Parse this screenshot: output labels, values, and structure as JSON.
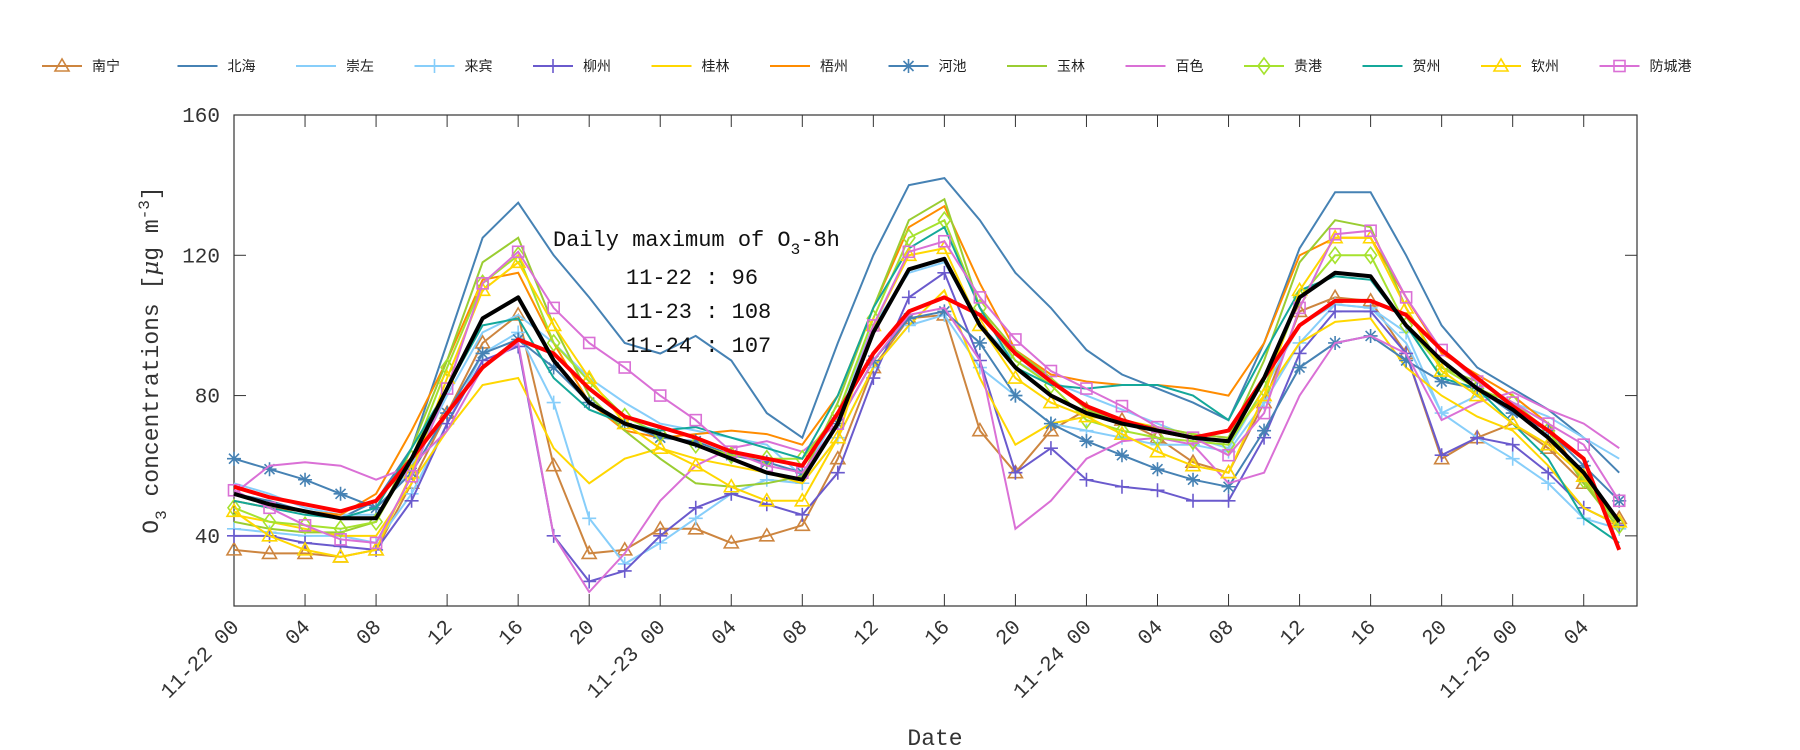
{
  "chart_data": {
    "type": "line",
    "title": "",
    "xlabel": "Date",
    "ylabel": "O3 concentrations [μg m-3]",
    "ylabel_parts": {
      "o": "O",
      "sub": "3",
      "mid": " concentrations [",
      "mu": "μ",
      "g": "g m",
      "sup": "-3",
      "end": "]"
    },
    "ylim": [
      20,
      160
    ],
    "xlim_hours": [
      0,
      79
    ],
    "yticks": [
      "40",
      "80",
      "120",
      "160"
    ],
    "ytick_values": [
      40,
      80,
      120,
      160
    ],
    "xticks": [
      "11-22 00",
      "04",
      "08",
      "12",
      "16",
      "20",
      "11-23 00",
      "04",
      "08",
      "12",
      "16",
      "20",
      "11-24 00",
      "04",
      "08",
      "12",
      "16",
      "20",
      "11-25 00",
      "04"
    ],
    "xtick_hours": [
      0,
      4,
      8,
      12,
      16,
      20,
      24,
      28,
      32,
      36,
      40,
      44,
      48,
      52,
      56,
      60,
      64,
      68,
      72,
      76
    ],
    "legend_position": "top",
    "annotation": {
      "title_main": "Daily maximum of O",
      "title_sub": "3",
      "title_end": "-8h",
      "lines": [
        "11-22 : 96",
        "11-23 : 108",
        "11-24 : 107"
      ]
    },
    "x_hours": [
      0,
      2,
      4,
      6,
      8,
      10,
      12,
      14,
      16,
      18,
      20,
      22,
      24,
      26,
      28,
      30,
      32,
      34,
      36,
      38,
      40,
      42,
      44,
      46,
      48,
      50,
      52,
      54,
      56,
      58,
      60,
      62,
      64,
      66,
      68,
      70,
      72,
      74,
      76,
      78
    ],
    "series": [
      {
        "name": "南宁",
        "color": "#cd853f",
        "marker": "triangle",
        "values": [
          36,
          35,
          35,
          34,
          36,
          55,
          75,
          95,
          103,
          60,
          35,
          36,
          42,
          42,
          38,
          40,
          43,
          62,
          88,
          102,
          103,
          70,
          58,
          70,
          76,
          73,
          68,
          61,
          58,
          78,
          104,
          108,
          107,
          92,
          62,
          68,
          72,
          65,
          55,
          45
        ]
      },
      {
        "name": "北海",
        "color": "#4682b4",
        "marker": "none",
        "values": [
          52,
          50,
          47,
          45,
          50,
          65,
          95,
          125,
          135,
          120,
          108,
          95,
          92,
          97,
          90,
          75,
          68,
          95,
          120,
          140,
          142,
          130,
          115,
          105,
          93,
          86,
          82,
          78,
          73,
          95,
          122,
          138,
          138,
          120,
          100,
          88,
          82,
          76,
          68,
          58
        ]
      },
      {
        "name": "崇左",
        "color": "#87cefa",
        "marker": "none",
        "values": [
          55,
          52,
          48,
          46,
          46,
          60,
          80,
          98,
          103,
          95,
          85,
          78,
          72,
          70,
          68,
          66,
          57,
          75,
          100,
          115,
          118,
          100,
          90,
          84,
          80,
          76,
          72,
          68,
          65,
          82,
          100,
          106,
          105,
          95,
          75,
          80,
          78,
          74,
          68,
          62
        ]
      },
      {
        "name": "来宾",
        "color": "#87cefa",
        "marker": "plus",
        "values": [
          42,
          41,
          40,
          40,
          38,
          52,
          72,
          92,
          98,
          78,
          45,
          32,
          38,
          45,
          52,
          56,
          55,
          68,
          88,
          100,
          103,
          88,
          80,
          72,
          70,
          68,
          66,
          66,
          64,
          78,
          95,
          106,
          105,
          98,
          75,
          68,
          62,
          55,
          45,
          42
        ]
      },
      {
        "name": "柳州",
        "color": "#6a5acd",
        "marker": "plus",
        "values": [
          40,
          40,
          38,
          37,
          36,
          50,
          72,
          90,
          94,
          40,
          27,
          30,
          40,
          48,
          52,
          49,
          46,
          58,
          85,
          108,
          115,
          90,
          58,
          65,
          56,
          54,
          53,
          50,
          50,
          68,
          92,
          104,
          104,
          92,
          63,
          68,
          66,
          58,
          48,
          43
        ]
      },
      {
        "name": "桂林",
        "color": "#ffd700",
        "marker": "none",
        "values": [
          46,
          44,
          42,
          40,
          40,
          55,
          70,
          83,
          85,
          65,
          55,
          62,
          65,
          62,
          60,
          58,
          55,
          68,
          88,
          100,
          110,
          85,
          66,
          72,
          74,
          73,
          71,
          69,
          68,
          80,
          95,
          101,
          102,
          88,
          80,
          74,
          70,
          60,
          48,
          43
        ]
      },
      {
        "name": "梧州",
        "color": "#ff8c00",
        "marker": "none",
        "values": [
          50,
          48,
          47,
          46,
          52,
          70,
          90,
          113,
          115,
          95,
          78,
          70,
          68,
          69,
          70,
          69,
          66,
          80,
          105,
          128,
          134,
          112,
          93,
          86,
          84,
          83,
          83,
          82,
          80,
          95,
          120,
          125,
          125,
          108,
          92,
          86,
          80,
          72,
          55,
          44
        ]
      },
      {
        "name": "河池",
        "color": "#4682b4",
        "marker": "asterisk",
        "values": [
          62,
          59,
          56,
          52,
          48,
          58,
          75,
          92,
          96,
          88,
          78,
          72,
          68,
          67,
          63,
          61,
          58,
          72,
          90,
          102,
          104,
          95,
          80,
          72,
          67,
          63,
          59,
          56,
          54,
          70,
          88,
          95,
          97,
          90,
          84,
          82,
          75,
          70,
          60,
          50
        ]
      },
      {
        "name": "玉林",
        "color": "#9acd32",
        "marker": "none",
        "values": [
          44,
          42,
          41,
          41,
          44,
          65,
          90,
          118,
          125,
          100,
          80,
          70,
          62,
          55,
          54,
          55,
          57,
          78,
          105,
          130,
          136,
          105,
          93,
          85,
          76,
          72,
          71,
          69,
          68,
          90,
          118,
          130,
          128,
          105,
          88,
          84,
          78,
          70,
          55,
          42
        ]
      },
      {
        "name": "百色",
        "color": "#da70d6",
        "marker": "none",
        "values": [
          52,
          60,
          61,
          60,
          56,
          60,
          70,
          88,
          95,
          40,
          24,
          35,
          50,
          60,
          65,
          67,
          64,
          72,
          90,
          103,
          105,
          90,
          42,
          50,
          62,
          67,
          68,
          66,
          55,
          58,
          80,
          95,
          97,
          92,
          73,
          78,
          81,
          76,
          72,
          65
        ]
      },
      {
        "name": "贵港",
        "color": "#a6e22e",
        "marker": "diamond",
        "values": [
          48,
          44,
          43,
          42,
          44,
          62,
          88,
          112,
          120,
          95,
          84,
          74,
          69,
          66,
          63,
          62,
          62,
          75,
          102,
          125,
          130,
          105,
          90,
          83,
          73,
          70,
          68,
          67,
          66,
          82,
          108,
          120,
          120,
          100,
          88,
          82,
          78,
          70,
          56,
          43
        ]
      },
      {
        "name": "贺州",
        "color": "#14a89a",
        "marker": "none",
        "values": [
          50,
          48,
          46,
          45,
          48,
          65,
          82,
          100,
          102,
          85,
          76,
          72,
          70,
          71,
          68,
          65,
          62,
          80,
          105,
          122,
          128,
          105,
          88,
          83,
          82,
          83,
          83,
          80,
          73,
          92,
          110,
          114,
          113,
          100,
          85,
          82,
          72,
          62,
          45,
          38
        ]
      },
      {
        "name": "钦州",
        "color": "#ffd700",
        "marker": "triangle",
        "values": [
          47,
          40,
          36,
          34,
          36,
          58,
          85,
          110,
          118,
          100,
          85,
          72,
          65,
          60,
          54,
          50,
          50,
          68,
          100,
          120,
          122,
          100,
          85,
          78,
          74,
          69,
          64,
          60,
          58,
          80,
          110,
          125,
          125,
          105,
          87,
          80,
          72,
          66,
          57,
          44
        ]
      },
      {
        "name": "防城港",
        "color": "#da70d6",
        "marker": "square",
        "values": [
          53,
          48,
          43,
          39,
          38,
          57,
          82,
          112,
          121,
          105,
          95,
          88,
          80,
          73,
          64,
          60,
          58,
          72,
          100,
          121,
          124,
          108,
          96,
          87,
          82,
          77,
          71,
          68,
          63,
          75,
          105,
          126,
          127,
          108,
          93,
          84,
          78,
          72,
          66,
          50
        ]
      }
    ],
    "extra_series": [
      {
        "color": "#ff0000",
        "values": [
          54,
          51,
          49,
          47,
          50,
          62,
          75,
          88,
          96,
          92,
          82,
          74,
          71,
          68,
          64,
          62,
          60,
          75,
          92,
          104,
          108,
          103,
          92,
          84,
          77,
          73,
          70,
          68,
          70,
          85,
          100,
          107,
          107,
          103,
          93,
          85,
          77,
          70,
          62,
          36
        ]
      },
      {
        "color": "#000000",
        "values": [
          52,
          49,
          47,
          45,
          45,
          62,
          82,
          102,
          108,
          90,
          78,
          72,
          69,
          66,
          62,
          58,
          56,
          72,
          98,
          116,
          119,
          100,
          88,
          80,
          75,
          72,
          70,
          68,
          67,
          85,
          108,
          115,
          114,
          100,
          90,
          82,
          76,
          68,
          58,
          44
        ]
      }
    ]
  }
}
